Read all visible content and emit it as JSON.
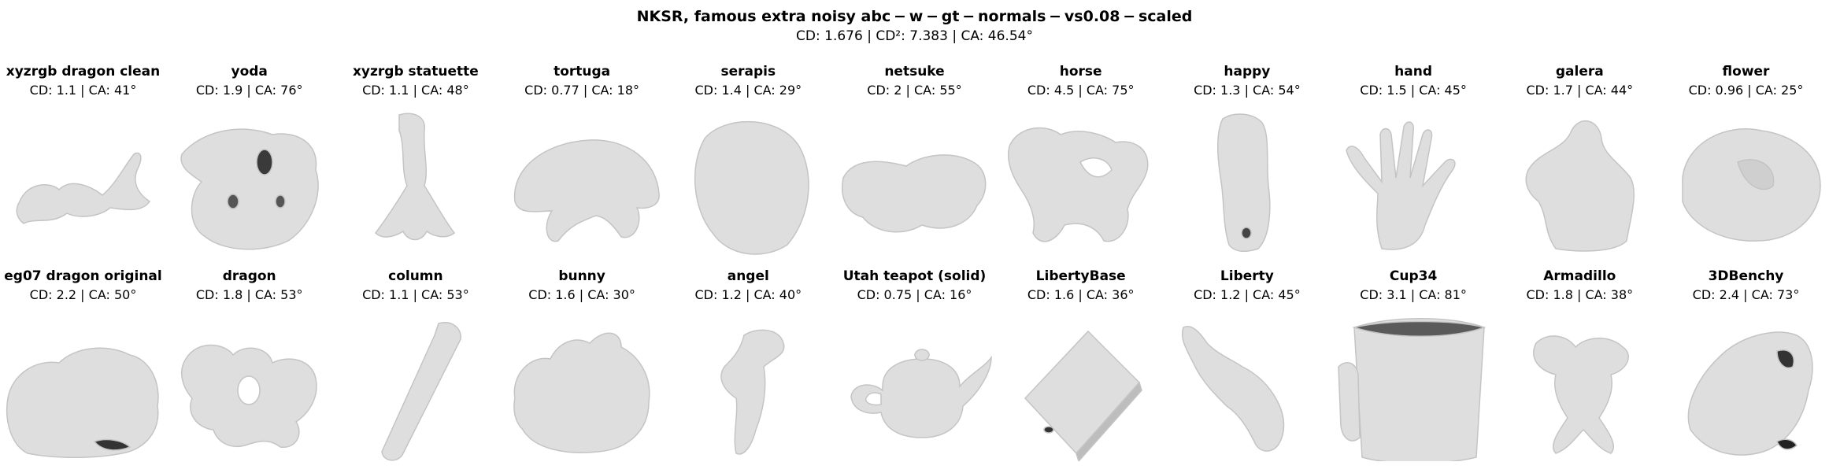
{
  "figure": {
    "title": "NKSR, famous extra noisy abc − w − gt − normals − vs0.08 − scaled",
    "summary": "CD: 1.676 | CD²: 7.383 | CA: 46.54°"
  },
  "panels": [
    {
      "name": "xyzrgb dragon clean",
      "metric": "CD: 1.1 | CA: 41°",
      "shape": "dragon"
    },
    {
      "name": "yoda",
      "metric": "CD: 1.9 | CA: 76°",
      "shape": "blob-holes"
    },
    {
      "name": "xyzrgb statuette",
      "metric": "CD: 1.1 | CA: 48°",
      "shape": "statuette"
    },
    {
      "name": "tortuga",
      "metric": "CD: 0.77 | CA: 18°",
      "shape": "turtle"
    },
    {
      "name": "serapis",
      "metric": "CD: 1.4 | CA: 29°",
      "shape": "head"
    },
    {
      "name": "netsuke",
      "metric": "CD: 2 | CA: 55°",
      "shape": "netsuke"
    },
    {
      "name": "horse",
      "metric": "CD: 4.5 | CA: 75°",
      "shape": "horse"
    },
    {
      "name": "happy",
      "metric": "CD: 1.3 | CA: 54°",
      "shape": "tall"
    },
    {
      "name": "hand",
      "metric": "CD: 1.5 | CA: 45°",
      "shape": "hand"
    },
    {
      "name": "galera",
      "metric": "CD: 1.7 | CA: 44°",
      "shape": "galera"
    },
    {
      "name": "flower",
      "metric": "CD: 0.96 | CA: 25°",
      "shape": "flower"
    },
    {
      "name": "eg07 dragon original",
      "metric": "CD: 2.2 | CA: 50°",
      "shape": "lump"
    },
    {
      "name": "dragon",
      "metric": "CD: 1.8 | CA: 53°",
      "shape": "dragon2"
    },
    {
      "name": "column",
      "metric": "CD: 1.1 | CA: 53°",
      "shape": "column"
    },
    {
      "name": "bunny",
      "metric": "CD: 1.6 | CA: 30°",
      "shape": "bunny"
    },
    {
      "name": "angel",
      "metric": "CD: 1.2 | CA: 40°",
      "shape": "angel"
    },
    {
      "name": "Utah teapot (solid)",
      "metric": "CD: 0.75 | CA: 16°",
      "shape": "teapot"
    },
    {
      "name": "LibertyBase",
      "metric": "CD: 1.6 | CA: 36°",
      "shape": "box"
    },
    {
      "name": "Liberty",
      "metric": "CD: 1.2 | CA: 45°",
      "shape": "liberty"
    },
    {
      "name": "Cup34",
      "metric": "CD: 3.1 | CA: 81°",
      "shape": "cup"
    },
    {
      "name": "Armadillo",
      "metric": "CD: 1.8 | CA: 38°",
      "shape": "armadillo"
    },
    {
      "name": "3DBenchy",
      "metric": "CD: 2.4 | CA: 73°",
      "shape": "benchy"
    }
  ]
}
